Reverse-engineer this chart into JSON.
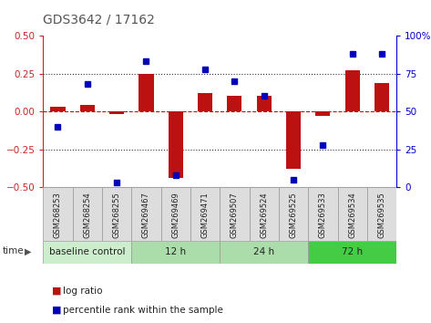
{
  "title": "GDS3642 / 17162",
  "samples": [
    "GSM268253",
    "GSM268254",
    "GSM268255",
    "GSM269467",
    "GSM269469",
    "GSM269471",
    "GSM269507",
    "GSM269524",
    "GSM269525",
    "GSM269533",
    "GSM269534",
    "GSM269535"
  ],
  "log_ratio": [
    0.03,
    0.04,
    -0.02,
    0.25,
    -0.44,
    0.12,
    0.1,
    0.1,
    -0.38,
    -0.03,
    0.27,
    0.19
  ],
  "percentile_rank": [
    40,
    68,
    3,
    83,
    8,
    78,
    70,
    60,
    5,
    28,
    88,
    88
  ],
  "groups": [
    {
      "label": "baseline control",
      "start": 0,
      "end": 3,
      "color": "#cceecc"
    },
    {
      "label": "12 h",
      "start": 3,
      "end": 6,
      "color": "#aaddaa"
    },
    {
      "label": "24 h",
      "start": 6,
      "end": 9,
      "color": "#aaddaa"
    },
    {
      "label": "72 h",
      "start": 9,
      "end": 12,
      "color": "#44cc44"
    }
  ],
  "bar_color": "#bb1111",
  "dot_color": "#0000bb",
  "ylim_left": [
    -0.5,
    0.5
  ],
  "ylim_right": [
    0,
    100
  ],
  "yticks_left": [
    -0.5,
    -0.25,
    0.0,
    0.25,
    0.5
  ],
  "yticks_right": [
    0,
    25,
    50,
    75,
    100
  ],
  "hlines_dotted": [
    -0.25,
    0.25
  ],
  "hline_dashed": 0.0,
  "title_color": "#555555",
  "left_tick_color": "#cc2222",
  "right_tick_color": "#0000cc",
  "sample_bg": "#dddddd",
  "sample_border": "#999999"
}
